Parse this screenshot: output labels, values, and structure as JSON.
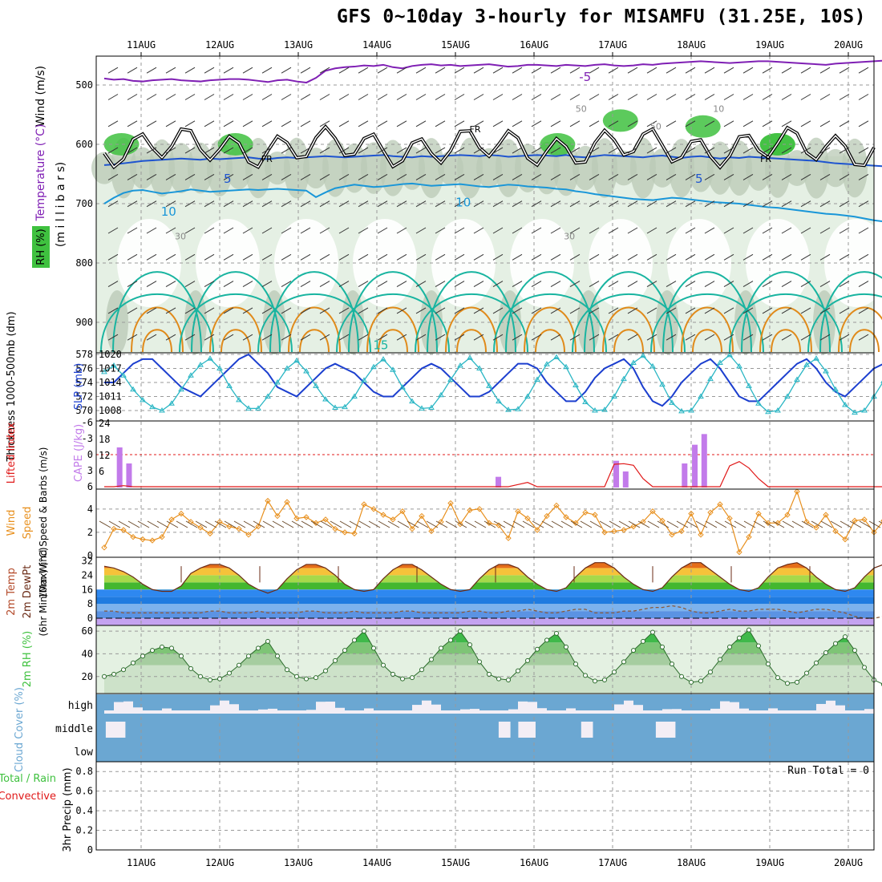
{
  "title": "GFS 0~10day 3-hourly for MISAMFU (31.25E, 10S)",
  "dates": [
    "11AUG",
    "12AUG",
    "13AUG",
    "14AUG",
    "15AUG",
    "16AUG",
    "17AUG",
    "18AUG",
    "19AUG",
    "20AUG"
  ],
  "colors": {
    "temp_contour_cold": "#7f1fb4",
    "temp_contour_5": "#1e54d0",
    "temp_contour_10": "#1996d8",
    "temp_contour_15": "#18b4a0",
    "temp_contour_warm": "#e08a1a",
    "slp": "#1c3fcf",
    "thickness": "#2ab6c4",
    "cape": "#c27bea",
    "lifted_index": "#e01818",
    "wind_speed": "#e8901e",
    "cloud": "#6ba7d2",
    "rh_green": "#3fc13f"
  },
  "chart_data": [
    {
      "type": "heatmap",
      "name": "cross-section",
      "ylabel_parts": [
        "Wind (m/s)",
        "Temperature (°C)",
        "RH (%)",
        "(m i l l i b a r s)"
      ],
      "y_ticks": [
        "500",
        "600",
        "700",
        "800",
        "900"
      ],
      "ylim": [
        950,
        450
      ],
      "contour_labels": [
        "-5",
        "5",
        "5",
        "10",
        "10",
        "15",
        "FR",
        "FR",
        "FR",
        "50",
        "50",
        "30",
        "30",
        "10"
      ],
      "isotherms": [
        {
          "name": "-5",
          "values": [
            489,
            491,
            490,
            493,
            494,
            492,
            491,
            490,
            492,
            493,
            494,
            492,
            491,
            490,
            490,
            491,
            493,
            495,
            492,
            491,
            494,
            496,
            488,
            476,
            472,
            470,
            469,
            467,
            468,
            466,
            470,
            472,
            468,
            466,
            465,
            467,
            466,
            468,
            467,
            466,
            465,
            467,
            469,
            468,
            466,
            466,
            467,
            468,
            466,
            467,
            468,
            466,
            465,
            467,
            468,
            467,
            465,
            466,
            464,
            463,
            462,
            461,
            460,
            461,
            462,
            463,
            462,
            461,
            460,
            460,
            461,
            462,
            463,
            464,
            465,
            466,
            464,
            463,
            462,
            461,
            460,
            459
          ]
        },
        {
          "name": "5",
          "values": [
            635,
            634,
            632,
            630,
            628,
            627,
            626,
            625,
            624,
            625,
            626,
            624,
            625,
            624,
            623,
            622,
            624,
            625,
            623,
            622,
            623,
            622,
            621,
            620,
            621,
            622,
            621,
            620,
            619,
            618,
            620,
            621,
            622,
            620,
            621,
            620,
            619,
            618,
            619,
            620,
            618,
            619,
            621,
            620,
            619,
            618,
            619,
            620,
            618,
            621,
            622,
            620,
            618,
            619,
            620,
            621,
            622,
            620,
            619,
            621,
            623,
            621,
            620,
            622,
            624,
            622,
            623,
            621,
            622,
            623,
            624,
            625,
            626,
            627,
            628,
            630,
            632,
            633,
            634,
            635,
            636,
            637
          ]
        },
        {
          "name": "10",
          "values": [
            700,
            690,
            682,
            678,
            677,
            680,
            683,
            681,
            679,
            676,
            678,
            680,
            679,
            678,
            677,
            676,
            677,
            676,
            675,
            676,
            677,
            678,
            689,
            681,
            674,
            671,
            668,
            670,
            672,
            671,
            669,
            667,
            666,
            668,
            670,
            669,
            668,
            667,
            669,
            671,
            672,
            670,
            668,
            669,
            671,
            672,
            673,
            675,
            676,
            679,
            681,
            684,
            686,
            688,
            690,
            692,
            693,
            694,
            692,
            690,
            691,
            693,
            695,
            697,
            698,
            699,
            700,
            702,
            704,
            706,
            707,
            709,
            711,
            713,
            715,
            717,
            718,
            720,
            722,
            725,
            728,
            730
          ]
        }
      ]
    },
    {
      "type": "line",
      "name": "slp-thickness",
      "ylabel_left": "Thickness 1000-500mb (dm)",
      "ylabel_right": "SLP (mb)",
      "y_ticks_left": [
        "570",
        "572",
        "574",
        "576",
        "578"
      ],
      "y_ticks_right": [
        "1008",
        "1011",
        "1014",
        "1017",
        "1020"
      ],
      "series": [
        {
          "name": "SLP",
          "axis": "right",
          "values": [
            1014,
            1014,
            1016,
            1018,
            1019,
            1019,
            1017,
            1015,
            1013,
            1012,
            1011,
            1013,
            1015,
            1017,
            1019,
            1020,
            1018,
            1016,
            1013,
            1012,
            1011,
            1013,
            1015,
            1017,
            1018,
            1017,
            1016,
            1014,
            1012,
            1011,
            1011,
            1013,
            1015,
            1017,
            1018,
            1017,
            1015,
            1013,
            1011,
            1011,
            1012,
            1014,
            1016,
            1018,
            1018,
            1017,
            1014,
            1012,
            1010,
            1010,
            1012,
            1015,
            1017,
            1018,
            1019,
            1017,
            1013,
            1010,
            1009,
            1011,
            1014,
            1016,
            1018,
            1019,
            1017,
            1014,
            1011,
            1010,
            1010,
            1012,
            1014,
            1016,
            1018,
            1019,
            1017,
            1014,
            1012,
            1011,
            1013,
            1015,
            1017,
            1018,
            1019
          ]
        },
        {
          "name": "Thickness",
          "axis": "left",
          "values": [
            575.5,
            576.4,
            575,
            573,
            571.5,
            570.5,
            570,
            571,
            573,
            575,
            576.5,
            577.4,
            576,
            573.5,
            571.5,
            570.3,
            570.3,
            572,
            574,
            576,
            577.1,
            575.6,
            573.5,
            571.6,
            570.4,
            570.5,
            572,
            574.3,
            576.2,
            577.3,
            575.8,
            573.3,
            571.3,
            570.3,
            570.4,
            572.2,
            574.4,
            576.4,
            577.5,
            576,
            573.5,
            571.3,
            570.1,
            570.2,
            572,
            574.4,
            576.6,
            577.6,
            576.2,
            573.6,
            571.2,
            570,
            570.1,
            572,
            574.5,
            576.8,
            577.8,
            576.3,
            573.7,
            571.1,
            569.9,
            570,
            572,
            574.5,
            576.8,
            577.9,
            576.3,
            573.5,
            571,
            569.8,
            570,
            572,
            574.4,
            576.5,
            577.4,
            575.6,
            573,
            570.8,
            569.7,
            570,
            572,
            574.2,
            576
          ]
        }
      ]
    },
    {
      "type": "bar",
      "name": "cape-li",
      "ylabel_left": "Lifted Index",
      "ylabel_right": "CAPE (J/kg)",
      "y_ticks_left": [
        "-6",
        "-3",
        "0",
        "3",
        "6"
      ],
      "y_ticks_right": [
        "6",
        "12",
        "18",
        "24"
      ],
      "cape_bars": [
        {
          "day": 0.16,
          "value": 15
        },
        {
          "day": 0.28,
          "value": 9
        },
        {
          "day": 4.98,
          "value": 4
        },
        {
          "day": 6.48,
          "value": 10
        },
        {
          "day": 6.6,
          "value": 6
        },
        {
          "day": 7.35,
          "value": 9
        },
        {
          "day": 7.48,
          "value": 16
        },
        {
          "day": 7.6,
          "value": 20
        }
      ],
      "lifted_index": [
        6,
        6,
        5.8,
        6,
        6,
        6,
        6,
        6,
        6,
        6,
        6,
        6,
        6,
        6,
        6,
        6,
        6,
        6,
        6,
        6,
        6,
        6,
        6,
        6,
        6,
        6,
        6,
        6,
        6,
        6,
        6,
        6,
        6,
        6,
        6,
        6,
        6,
        6,
        6,
        6,
        6,
        6,
        6,
        5.6,
        5.2,
        6,
        6,
        6,
        6,
        6,
        6,
        6,
        6,
        1.8,
        1.7,
        2,
        4.5,
        6,
        6,
        6,
        6,
        6,
        6,
        6,
        6,
        2.1,
        1.3,
        2.5,
        4.5,
        6,
        6,
        6,
        6,
        6,
        6,
        6,
        6,
        6,
        6,
        6,
        6,
        6,
        6,
        6
      ]
    },
    {
      "type": "line",
      "name": "wind-10m",
      "ylabel": "10m Wind Speed & Barbs (m/s)",
      "y_ticks": [
        "0",
        "2",
        "4"
      ],
      "ylim": [
        0,
        5.5
      ],
      "series": [
        {
          "name": "10m Wind Speed",
          "values": [
            0.7,
            2.3,
            2.2,
            1.6,
            1.4,
            1.3,
            1.6,
            3.1,
            3.6,
            2.9,
            2.4,
            1.9,
            2.9,
            2.5,
            2.3,
            1.8,
            2.5,
            4.7,
            3.4,
            4.6,
            3.2,
            3.3,
            2.8,
            3.1,
            2.3,
            2.0,
            1.9,
            4.4,
            4.0,
            3.5,
            3.1,
            3.8,
            2.3,
            3.4,
            2.1,
            2.9,
            4.5,
            2.7,
            3.9,
            4.0,
            2.8,
            2.6,
            1.5,
            3.8,
            3.2,
            2.2,
            3.4,
            4.3,
            3.3,
            2.8,
            3.7,
            3.5,
            2.0,
            2.1,
            2.2,
            2.5,
            2.9,
            3.8,
            3.0,
            1.8,
            2.1,
            3.6,
            1.8,
            3.7,
            4.4,
            3.2,
            0.3,
            1.6,
            3.6,
            2.8,
            2.8,
            3.5,
            5.5,
            2.9,
            2.4,
            3.5,
            2.1,
            1.4,
            3.0,
            3.1,
            2.0,
            3.0,
            4.2,
            2.2
          ]
        }
      ]
    },
    {
      "type": "area",
      "name": "temperature",
      "ylabel_parts": [
        "2m Temp",
        "2m DewPt",
        "(6hr Min/Max) (°C)"
      ],
      "y_ticks": [
        "0",
        "8",
        "16",
        "24",
        "32"
      ],
      "ylim": [
        -4,
        34
      ],
      "series": [
        {
          "name": "2m Temp",
          "values": [
            29,
            28,
            26,
            23,
            19,
            16,
            15,
            15,
            18,
            25,
            28,
            30,
            30,
            28,
            24,
            19,
            16,
            14,
            16,
            22,
            27,
            30,
            30,
            28,
            24,
            19,
            16,
            15,
            16,
            22,
            27,
            30,
            30,
            27,
            23,
            19,
            16,
            15,
            16,
            22,
            27,
            30,
            30,
            28,
            23,
            19,
            16,
            15,
            17,
            23,
            28,
            31,
            31,
            28,
            23,
            19,
            16,
            15,
            17,
            23,
            28,
            31,
            31,
            27,
            23,
            19,
            16,
            15,
            17,
            23,
            28,
            30,
            31,
            28,
            23,
            19,
            16,
            15,
            17,
            23,
            28,
            30,
            31,
            28,
            23,
            19,
            15,
            19
          ]
        },
        {
          "name": "2m DewPt",
          "values": [
            4,
            4,
            3,
            3,
            3,
            3,
            3,
            3,
            3,
            3,
            3,
            4,
            4,
            3,
            3,
            3,
            4,
            3,
            3,
            3,
            3,
            4,
            4,
            3,
            3,
            3,
            4,
            3,
            3,
            3,
            3,
            4,
            4,
            3,
            3,
            3,
            3,
            3,
            4,
            4,
            3,
            3,
            4,
            4,
            5,
            4,
            3,
            3,
            4,
            5,
            5,
            3,
            3,
            3,
            4,
            4,
            5,
            6,
            6,
            7,
            6,
            4,
            3,
            3,
            4,
            5,
            4,
            4,
            5,
            5,
            5,
            4,
            3,
            4,
            5,
            5,
            4,
            3,
            1,
            0,
            0,
            1,
            1,
            2,
            3,
            4,
            4,
            4,
            5,
            4
          ]
        }
      ]
    },
    {
      "type": "area",
      "name": "rh-2m",
      "ylabel": "2m RH (%)",
      "y_ticks": [
        "20",
        "40",
        "60"
      ],
      "ylim": [
        5,
        65
      ],
      "series": [
        {
          "name": "2m RH",
          "values": [
            20,
            22,
            26,
            32,
            38,
            43,
            46,
            45,
            38,
            27,
            20,
            17,
            18,
            23,
            30,
            38,
            45,
            51,
            38,
            26,
            20,
            18,
            19,
            25,
            34,
            43,
            52,
            60,
            45,
            30,
            22,
            18,
            19,
            26,
            35,
            45,
            52,
            60,
            48,
            33,
            22,
            18,
            17,
            25,
            34,
            44,
            52,
            58,
            46,
            31,
            21,
            16,
            17,
            24,
            33,
            43,
            51,
            59,
            46,
            31,
            20,
            15,
            16,
            24,
            35,
            46,
            54,
            61,
            47,
            31,
            19,
            14,
            15,
            23,
            32,
            41,
            49,
            55,
            43,
            28,
            17,
            13,
            14,
            21,
            29,
            37,
            44,
            51,
            37
          ]
        }
      ]
    },
    {
      "type": "bar",
      "name": "cloud-cover",
      "ylabel": "Cloud Cover (%)",
      "layers": [
        "high",
        "middle",
        "low"
      ]
    },
    {
      "type": "bar",
      "name": "precip",
      "ylabel_parts": [
        "Total / Rain",
        "Convective",
        "3hr Precip (mm)"
      ],
      "y_ticks": [
        "0",
        "0.2",
        "0.4",
        "0.6",
        "0.8"
      ],
      "annotation": "Run Total = 0",
      "values": []
    }
  ]
}
